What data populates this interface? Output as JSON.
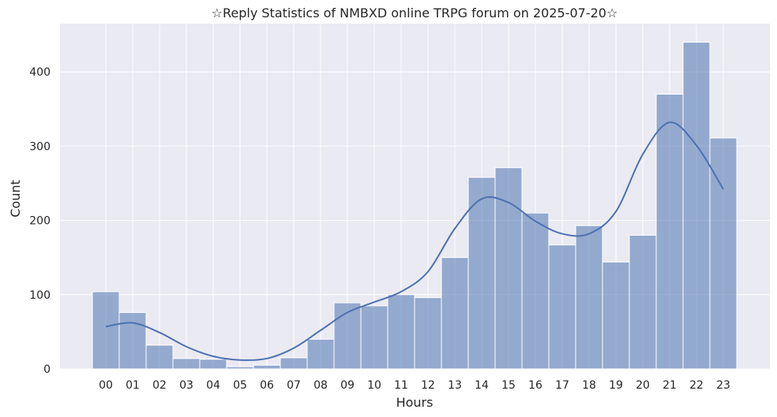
{
  "chart_data": {
    "type": "bar",
    "title": "☆Reply Statistics of NMBXD online TRPG forum on 2025-07-20☆",
    "xlabel": "Hours",
    "ylabel": "Count",
    "categories": [
      "00",
      "01",
      "02",
      "03",
      "04",
      "05",
      "06",
      "07",
      "08",
      "09",
      "10",
      "11",
      "12",
      "13",
      "14",
      "15",
      "16",
      "17",
      "18",
      "19",
      "20",
      "21",
      "22",
      "23"
    ],
    "values": [
      104,
      76,
      32,
      14,
      13,
      3,
      5,
      15,
      40,
      89,
      85,
      100,
      96,
      150,
      258,
      271,
      210,
      167,
      193,
      144,
      180,
      370,
      440,
      311
    ],
    "kde": [
      57,
      62,
      49,
      30,
      17,
      12,
      14,
      28,
      52,
      76,
      90,
      104,
      131,
      189,
      229,
      224,
      199,
      182,
      182,
      212,
      289,
      332,
      301,
      242
    ],
    "ylim": [
      0,
      465
    ],
    "yticks": [
      0,
      100,
      200,
      300,
      400
    ],
    "grid": true,
    "colors": {
      "background": "#eaeaf2",
      "grid": "#ffffff",
      "bar_fill": "#4c72b0",
      "bar_opacity": 0.55,
      "line": "#4c72b0"
    }
  }
}
